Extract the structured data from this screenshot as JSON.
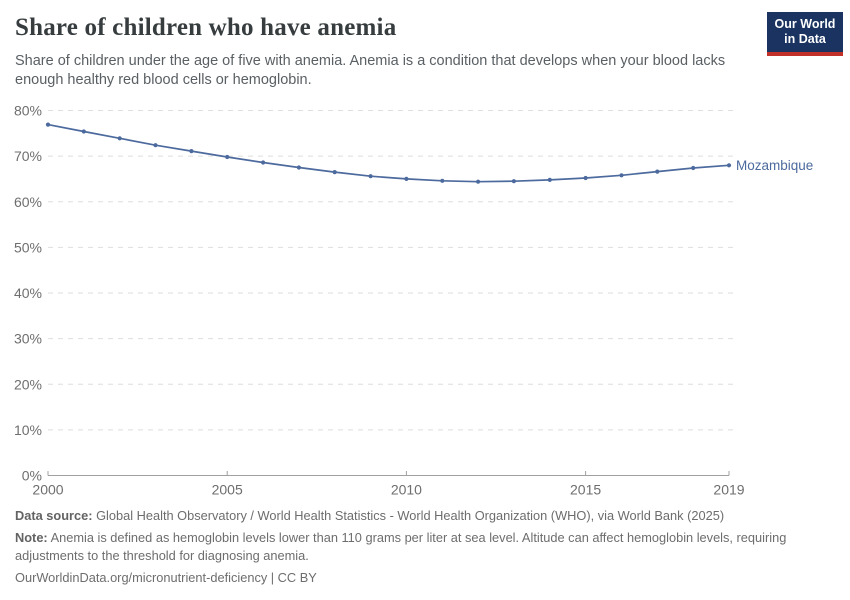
{
  "header": {
    "title": "Share of children who have anemia",
    "subtitle": "Share of children under the age of five with anemia. Anemia is a condition that develops when your blood lacks enough healthy red blood cells or hemoglobin.",
    "logo": {
      "line1": "Our World",
      "line2": "in Data"
    }
  },
  "chart_data": {
    "type": "line",
    "title": "Share of children who have anemia",
    "xlabel": "",
    "ylabel": "",
    "ylim": [
      0,
      80
    ],
    "ytick_suffix": "%",
    "yticks": [
      0,
      10,
      20,
      30,
      40,
      50,
      60,
      70,
      80
    ],
    "xticks": [
      2000,
      2005,
      2010,
      2015,
      2019
    ],
    "xlim": [
      2000,
      2019
    ],
    "grid": "horizontal-dashed",
    "legend_position": "end-of-line-label",
    "series": [
      {
        "name": "Mozambique",
        "color": "#4c6a9d",
        "x": [
          2000,
          2001,
          2002,
          2003,
          2004,
          2005,
          2006,
          2007,
          2008,
          2009,
          2010,
          2011,
          2012,
          2013,
          2014,
          2015,
          2016,
          2017,
          2018,
          2019
        ],
        "values": [
          76.9,
          75.4,
          73.9,
          72.4,
          71.1,
          69.8,
          68.6,
          67.5,
          66.5,
          65.6,
          65.0,
          64.6,
          64.4,
          64.5,
          64.8,
          65.2,
          65.8,
          66.6,
          67.4,
          68.0
        ]
      }
    ]
  },
  "footer": {
    "source_label": "Data source:",
    "source_text": "Global Health Observatory / World Health Statistics - World Health Organization (WHO), via World Bank (2025)",
    "note_label": "Note:",
    "note_text": "Anemia is defined as hemoglobin levels lower than 110 grams per liter at sea level. Altitude can affect hemoglobin levels, requiring adjustments to the threshold for diagnosing anemia.",
    "citation": "OurWorldinData.org/micronutrient-deficiency | CC BY"
  },
  "colors": {
    "line": "#4c6a9d",
    "logo_background": "#1a3360",
    "logo_stripe": "#c2302a",
    "gridline": "#dedede",
    "axis": "#a0a0a0",
    "tick_text": "#6e6e6e"
  }
}
